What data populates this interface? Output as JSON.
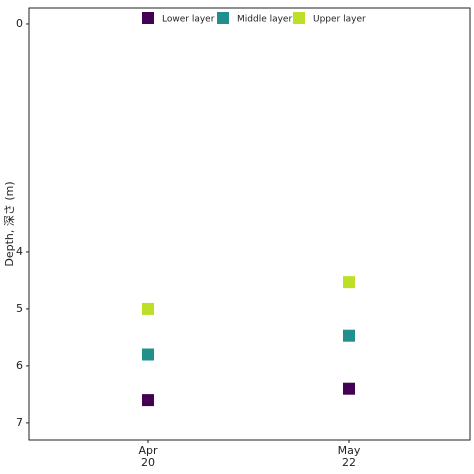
{
  "chart_data": {
    "type": "scatter",
    "y_label": "Depth, 深さ (m)",
    "categories": [
      "Apr 20",
      "May 22"
    ],
    "series": [
      {
        "name": "Lower layer",
        "color": "#440154",
        "values": [
          6.6,
          6.4
        ]
      },
      {
        "name": "Middle layer",
        "color": "#21908c",
        "values": [
          5.8,
          5.47
        ]
      },
      {
        "name": "Upper layer",
        "color": "#bddf26",
        "values": [
          5.0,
          4.53
        ]
      }
    ],
    "ylim": [
      -0.28,
      7.3
    ],
    "y_reversed": true,
    "yticks": [
      0,
      4,
      5,
      6,
      7
    ],
    "grid": false,
    "legend": "top"
  }
}
